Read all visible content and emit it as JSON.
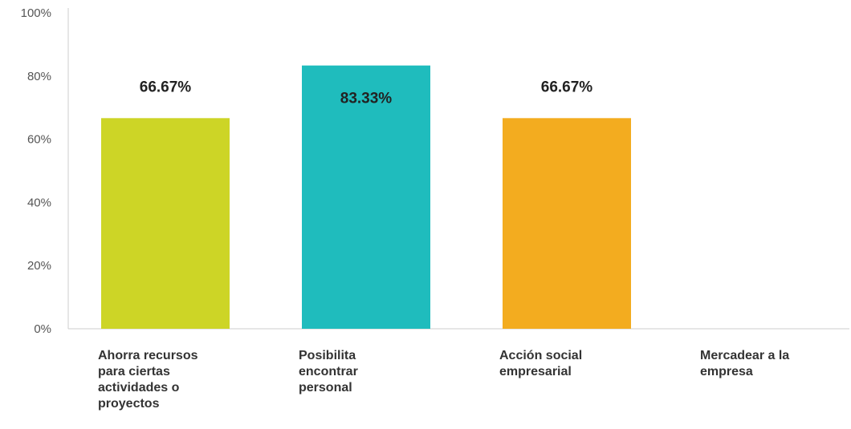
{
  "chart_data": {
    "type": "bar",
    "categories": [
      "Ahorra recursos para ciertas actividades o proyectos",
      "Posibilita encontrar personal",
      "Acción social empresarial",
      "Mercadear a la empresa"
    ],
    "category_lines": [
      [
        "Ahorra recursos",
        "para ciertas",
        "actividades o",
        "proyectos"
      ],
      [
        "Posibilita",
        "encontrar",
        "personal"
      ],
      [
        "Acción social",
        "empresarial"
      ],
      [
        "Mercadear a la",
        "empresa"
      ]
    ],
    "values": [
      66.67,
      83.33,
      66.67,
      0
    ],
    "data_labels": [
      "66.67%",
      "83.33%",
      "66.67%",
      ""
    ],
    "colors": [
      "#cdd526",
      "#1fbcbd",
      "#f3ac1f",
      "#cccccc"
    ],
    "yticks": [
      "0%",
      "20%",
      "40%",
      "60%",
      "80%",
      "100%"
    ],
    "ylim": [
      0,
      100
    ],
    "title": "",
    "xlabel": "",
    "ylabel": "",
    "grid": false,
    "legend": "none"
  }
}
